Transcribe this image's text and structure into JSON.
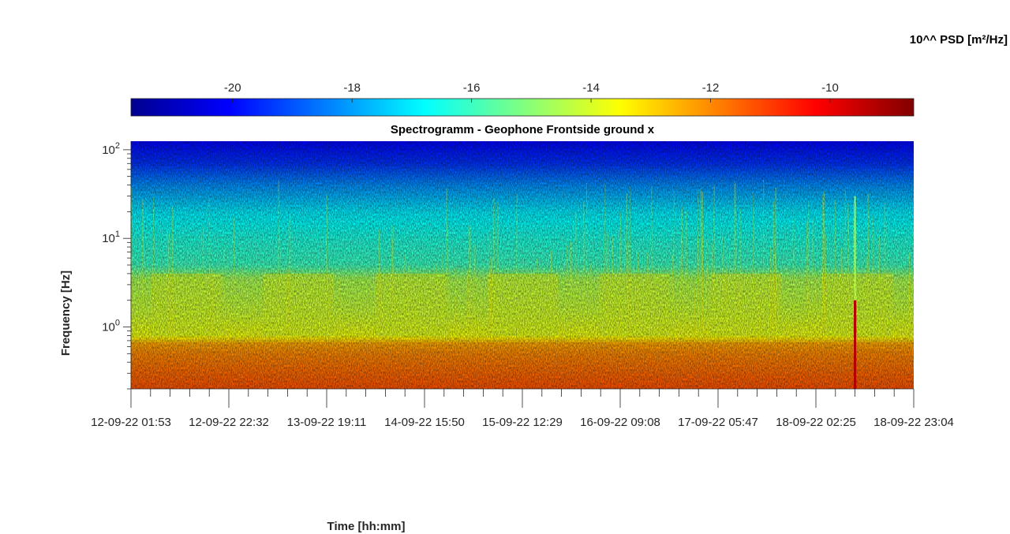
{
  "chart_data": {
    "type": "heatmap",
    "title": "Spectrogramm - Geophone Frontside ground x",
    "xlabel": "Time [hh:mm]",
    "ylabel": "Frequency [Hz]",
    "y_scale": "log",
    "ylim": [
      0.2,
      125
    ],
    "y_ticks": [
      1,
      10,
      100
    ],
    "y_tick_labels": [
      {
        "base": "10",
        "exp": "0"
      },
      {
        "base": "10",
        "exp": "1"
      },
      {
        "base": "10",
        "exp": "2"
      }
    ],
    "x_tick_labels": [
      "12-09-22  01:53",
      "12-09-22  22:32",
      "13-09-22  19:11",
      "14-09-22  15:50",
      "15-09-22  12:29",
      "16-09-22  09:08",
      "17-09-22  05:47",
      "18-09-22  02:25",
      "18-09-22  23:04"
    ],
    "colormap": "jet",
    "colorbar": {
      "label": "10^^ PSD [m²/Hz]",
      "range": [
        -21.7,
        -8.6
      ],
      "ticks": [
        -20,
        -18,
        -16,
        -14,
        -12,
        -10
      ],
      "tick_labels": [
        "-20",
        "-18",
        "-16",
        "-14",
        "-12",
        "-10"
      ],
      "location": "north"
    },
    "grid": false,
    "spectrum_profile": [
      {
        "freq": 0.2,
        "log_psd": -11.3
      },
      {
        "freq": 0.3,
        "log_psd": -11.6
      },
      {
        "freq": 0.5,
        "log_psd": -12.0
      },
      {
        "freq": 0.65,
        "log_psd": -12.4
      },
      {
        "freq": 0.8,
        "log_psd": -13.7
      },
      {
        "freq": 1.5,
        "log_psd": -14.2
      },
      {
        "freq": 3.5,
        "log_psd": -14.6
      },
      {
        "freq": 5,
        "log_psd": -16.0
      },
      {
        "freq": 10,
        "log_psd": -16.4
      },
      {
        "freq": 20,
        "log_psd": -17.0
      },
      {
        "freq": 40,
        "log_psd": -18.2
      },
      {
        "freq": 70,
        "log_psd": -19.4
      },
      {
        "freq": 125,
        "log_psd": -20.0
      }
    ],
    "events": [
      {
        "time": "18-09-22 07:46",
        "peak_log_psd": -9.3
      }
    ]
  }
}
